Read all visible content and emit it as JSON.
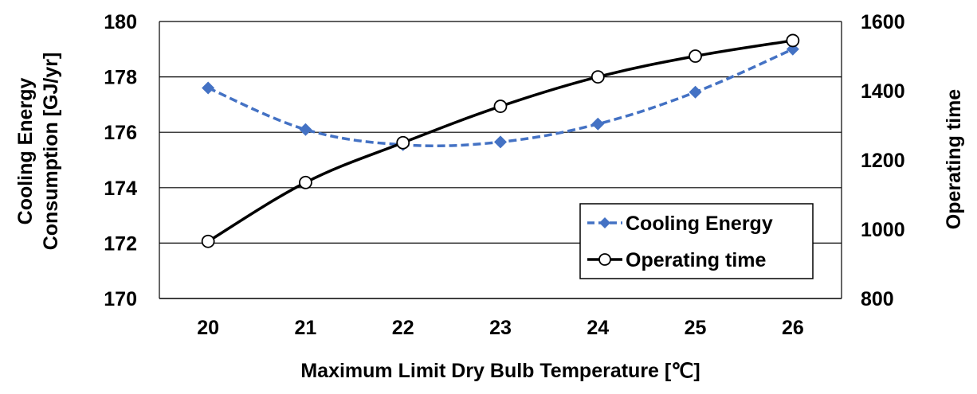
{
  "chart_data": {
    "type": "line",
    "xlabel": "Maximum Limit Dry Bulb Temperature [℃]",
    "categories": [
      "20",
      "21",
      "22",
      "23",
      "24",
      "25",
      "26"
    ],
    "y_left": {
      "label_lines": [
        "Cooling Energy",
        "Consumption [GJ/yr]"
      ],
      "ylim": [
        170,
        180
      ],
      "ticks": [
        "170",
        "172",
        "174",
        "176",
        "178",
        "180"
      ]
    },
    "y_right": {
      "label": "Operating time",
      "ylim": [
        800,
        1600
      ],
      "ticks": [
        "800",
        "1000",
        "1200",
        "1400",
        "1600"
      ]
    },
    "grid": true,
    "legend_position": "bottom-right",
    "series": [
      {
        "name": "Cooling Energy",
        "axis": "left",
        "color": "#4472C4",
        "marker": "diamond",
        "line_style": "dashed",
        "values": [
          177.6,
          176.1,
          175.55,
          175.65,
          176.3,
          177.45,
          179.0
        ]
      },
      {
        "name": "Operating time",
        "axis": "right",
        "color": "#000000",
        "marker": "circle",
        "line_style": "solid",
        "values": [
          965,
          1135,
          1250,
          1355,
          1440,
          1500,
          1545
        ]
      }
    ]
  }
}
